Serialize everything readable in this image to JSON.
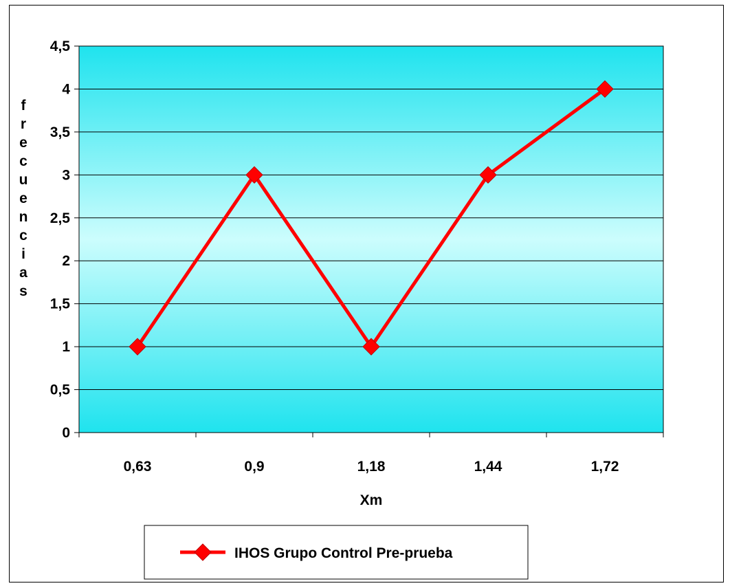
{
  "chart_data": {
    "type": "line",
    "categories": [
      "0,63",
      "0,9",
      "1,18",
      "1,44",
      "1,72"
    ],
    "series": [
      {
        "name": "IHOS Grupo Control Pre-prueba",
        "values": [
          1,
          3,
          1,
          3,
          4
        ],
        "color": "#ff0000"
      }
    ],
    "xlabel": "Xm",
    "ylabel": "frecuencias",
    "ylim": [
      0,
      4.5
    ],
    "yticks": [
      {
        "value": 0,
        "label": "0"
      },
      {
        "value": 0.5,
        "label": "0,5"
      },
      {
        "value": 1,
        "label": "1"
      },
      {
        "value": 1.5,
        "label": "1,5"
      },
      {
        "value": 2,
        "label": "2"
      },
      {
        "value": 2.5,
        "label": "2,5"
      },
      {
        "value": 3,
        "label": "3"
      },
      {
        "value": 3.5,
        "label": "3,5"
      },
      {
        "value": 4,
        "label": "4"
      },
      {
        "value": 4.5,
        "label": "4,5"
      }
    ],
    "grid": true,
    "legend": "bottom",
    "plot_gradient": [
      "#1fe3ee",
      "#ccfdfd"
    ],
    "marker": "diamond"
  }
}
